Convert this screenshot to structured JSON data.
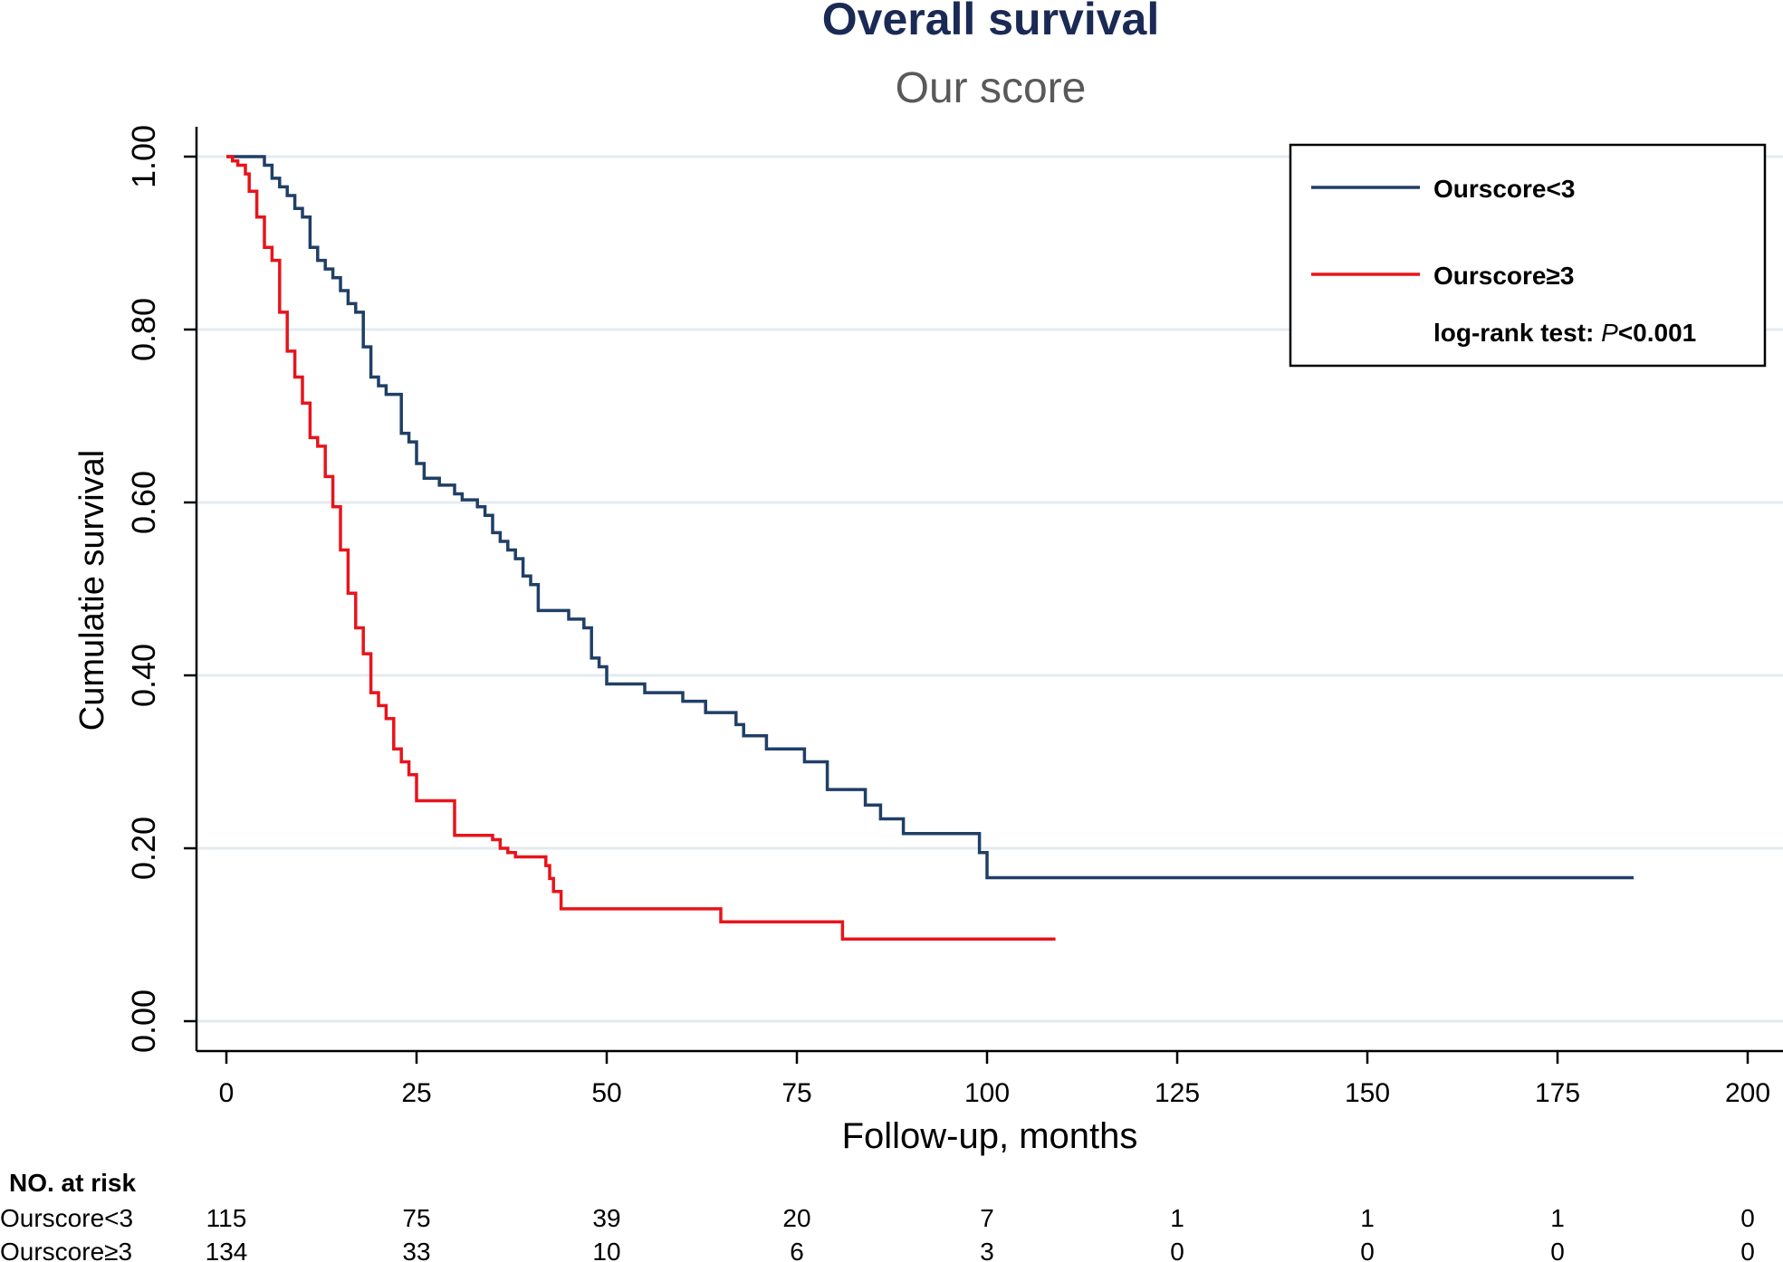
{
  "chart_data": {
    "type": "line",
    "title": "Overall survival",
    "subtitle": "Our score",
    "xlabel": "Follow-up, months",
    "ylabel": "Cumulatie survival",
    "xlim": [
      0,
      200
    ],
    "ylim": [
      0,
      1
    ],
    "xticks": [
      0,
      25,
      50,
      75,
      100,
      125,
      150,
      175,
      200
    ],
    "yticks": [
      0,
      0.2,
      0.4,
      0.6,
      0.8,
      1.0
    ],
    "ytick_labels": [
      "0.00",
      "0.20",
      "0.40",
      "0.60",
      "0.80",
      "1.00"
    ],
    "grid": "horizontal",
    "legend_position": "top-right",
    "annotation": {
      "prefix": "log-rank test: ",
      "pvar": "P",
      "suffix": "<0.001"
    },
    "series": [
      {
        "name": "Ourscore<3",
        "color": "#1f3f66",
        "x": [
          0,
          5,
          6,
          7,
          8,
          9,
          10,
          11,
          12,
          13,
          14,
          15,
          16,
          17,
          18,
          19,
          20,
          21,
          23,
          24,
          25,
          26,
          28,
          30,
          31,
          33,
          34,
          35,
          36,
          37,
          38,
          39,
          40,
          41,
          45,
          47,
          48,
          49,
          50,
          55,
          60,
          63,
          67,
          68,
          71,
          76,
          79,
          84,
          86,
          89,
          99,
          100,
          185
        ],
        "y": [
          1.0,
          0.99,
          0.975,
          0.965,
          0.955,
          0.94,
          0.93,
          0.895,
          0.88,
          0.87,
          0.86,
          0.845,
          0.83,
          0.82,
          0.78,
          0.745,
          0.735,
          0.725,
          0.68,
          0.67,
          0.645,
          0.628,
          0.62,
          0.61,
          0.603,
          0.595,
          0.585,
          0.565,
          0.555,
          0.545,
          0.535,
          0.515,
          0.505,
          0.475,
          0.465,
          0.455,
          0.42,
          0.41,
          0.39,
          0.38,
          0.37,
          0.357,
          0.343,
          0.33,
          0.315,
          0.3,
          0.268,
          0.25,
          0.234,
          0.217,
          0.195,
          0.166,
          0.166
        ]
      },
      {
        "name": "Ourscore≥3",
        "color": "#e8141c",
        "x": [
          0,
          0.8,
          1.5,
          2.5,
          3,
          4,
          5,
          6,
          7,
          8,
          9,
          10,
          11,
          12,
          13,
          14,
          15,
          16,
          17,
          18,
          19,
          20,
          21,
          22,
          23,
          24,
          25,
          30,
          35,
          36,
          37,
          38,
          42,
          42.5,
          43,
          44,
          65,
          81,
          109
        ],
        "y": [
          1.0,
          0.995,
          0.99,
          0.98,
          0.96,
          0.93,
          0.895,
          0.88,
          0.82,
          0.775,
          0.745,
          0.715,
          0.675,
          0.665,
          0.63,
          0.595,
          0.545,
          0.495,
          0.455,
          0.425,
          0.38,
          0.365,
          0.35,
          0.315,
          0.3,
          0.285,
          0.255,
          0.215,
          0.21,
          0.2,
          0.195,
          0.19,
          0.18,
          0.165,
          0.15,
          0.13,
          0.115,
          0.095,
          0.095
        ]
      }
    ],
    "risk_table": {
      "header": "NO. at risk",
      "times": [
        0,
        25,
        50,
        75,
        100,
        125,
        150,
        175,
        200
      ],
      "rows": [
        {
          "label": "Ourscore<3",
          "values": [
            "115",
            "75",
            "39",
            "20",
            "7",
            "1",
            "1",
            "1",
            "0"
          ]
        },
        {
          "label": "Ourscore≥3",
          "values": [
            "134",
            "33",
            "10",
            "6",
            "3",
            "0",
            "0",
            "0",
            "0"
          ]
        }
      ]
    }
  }
}
